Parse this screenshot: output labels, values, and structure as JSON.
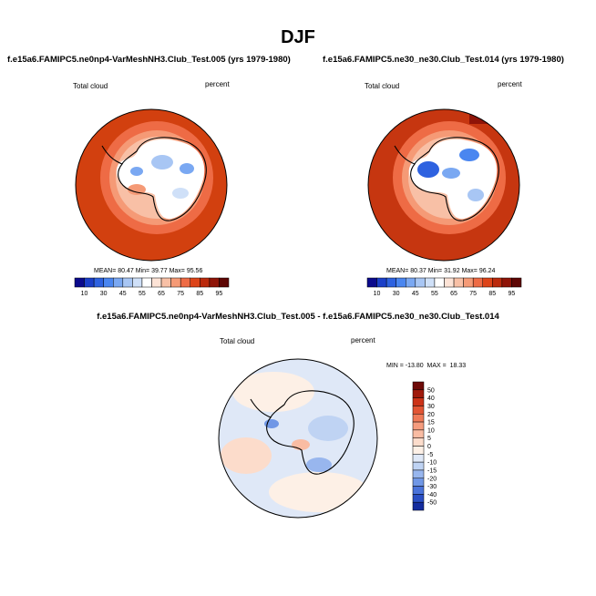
{
  "figure": {
    "title": "DJF"
  },
  "chart_data": [
    {
      "type": "heatmap",
      "projection": "south-polar-stereographic",
      "title": "f.e15a6.FAMIPC5.ne0np4-VarMeshNH3.Club_Test.005 (yrs 1979-1980)",
      "variable_label": "Total cloud",
      "units_label": "percent",
      "stats": {
        "mean_label": "MEAN=",
        "mean": "80.47",
        "min_label": "Min=",
        "min": "39.77",
        "max_label": "Max=",
        "max": "95.56"
      },
      "colorbar_ticks": [
        "10",
        "30",
        "45",
        "55",
        "65",
        "75",
        "85",
        "95"
      ],
      "colorbar_levels": [
        10,
        20,
        30,
        40,
        45,
        50,
        55,
        60,
        65,
        70,
        75,
        80,
        85,
        90,
        95
      ],
      "colorbar_colors": [
        "#0b0a8c",
        "#1b3fc8",
        "#2e62e0",
        "#4a86f0",
        "#7aa8f2",
        "#a8c6f4",
        "#cfe0f8",
        "#ffffff",
        "#fde3d6",
        "#f8c0a6",
        "#f59a76",
        "#ee6b45",
        "#dd4419",
        "#bb2a0d",
        "#8f1408",
        "#5e0604"
      ]
    },
    {
      "type": "heatmap",
      "projection": "south-polar-stereographic",
      "title": "f.e15a6.FAMIPC5.ne30_ne30.Club_Test.014 (yrs 1979-1980)",
      "variable_label": "Total cloud",
      "units_label": "percent",
      "stats": {
        "mean_label": "MEAN=",
        "mean": "80.37",
        "min_label": "Min=",
        "min": "31.92",
        "max_label": "Max=",
        "max": "96.24"
      },
      "colorbar_ticks": [
        "10",
        "30",
        "45",
        "55",
        "65",
        "75",
        "85",
        "95"
      ],
      "colorbar_levels": [
        10,
        20,
        30,
        40,
        45,
        50,
        55,
        60,
        65,
        70,
        75,
        80,
        85,
        90,
        95
      ],
      "colorbar_colors": [
        "#0b0a8c",
        "#1b3fc8",
        "#2e62e0",
        "#4a86f0",
        "#7aa8f2",
        "#a8c6f4",
        "#cfe0f8",
        "#ffffff",
        "#fde3d6",
        "#f8c0a6",
        "#f59a76",
        "#ee6b45",
        "#dd4419",
        "#bb2a0d",
        "#8f1408",
        "#5e0604"
      ]
    },
    {
      "type": "heatmap",
      "projection": "south-polar-stereographic",
      "title": "f.e15a6.FAMIPC5.ne0np4-VarMeshNH3.Club_Test.005 - f.e15a6.FAMIPC5.ne30_ne30.Club_Test.014",
      "variable_label": "Total cloud",
      "units_label": "percent",
      "stats_text": "MIN = -13.80  MAX =  18.33",
      "colorbar_ticks": [
        "50",
        "40",
        "30",
        "20",
        "15",
        "10",
        "5",
        "0",
        "-5",
        "-10",
        "-15",
        "-20",
        "-30",
        "-40",
        "-50"
      ],
      "colorbar_colors": [
        "#6e0a08",
        "#a01a0c",
        "#cc3318",
        "#e25534",
        "#ef7a58",
        "#f59c7e",
        "#f9bca3",
        "#fcdccb",
        "#fdf0e6",
        "#dfe8f7",
        "#bfd3f3",
        "#98b6ee",
        "#7097e6",
        "#4a73da",
        "#2a4fc4",
        "#142c9e"
      ]
    }
  ]
}
